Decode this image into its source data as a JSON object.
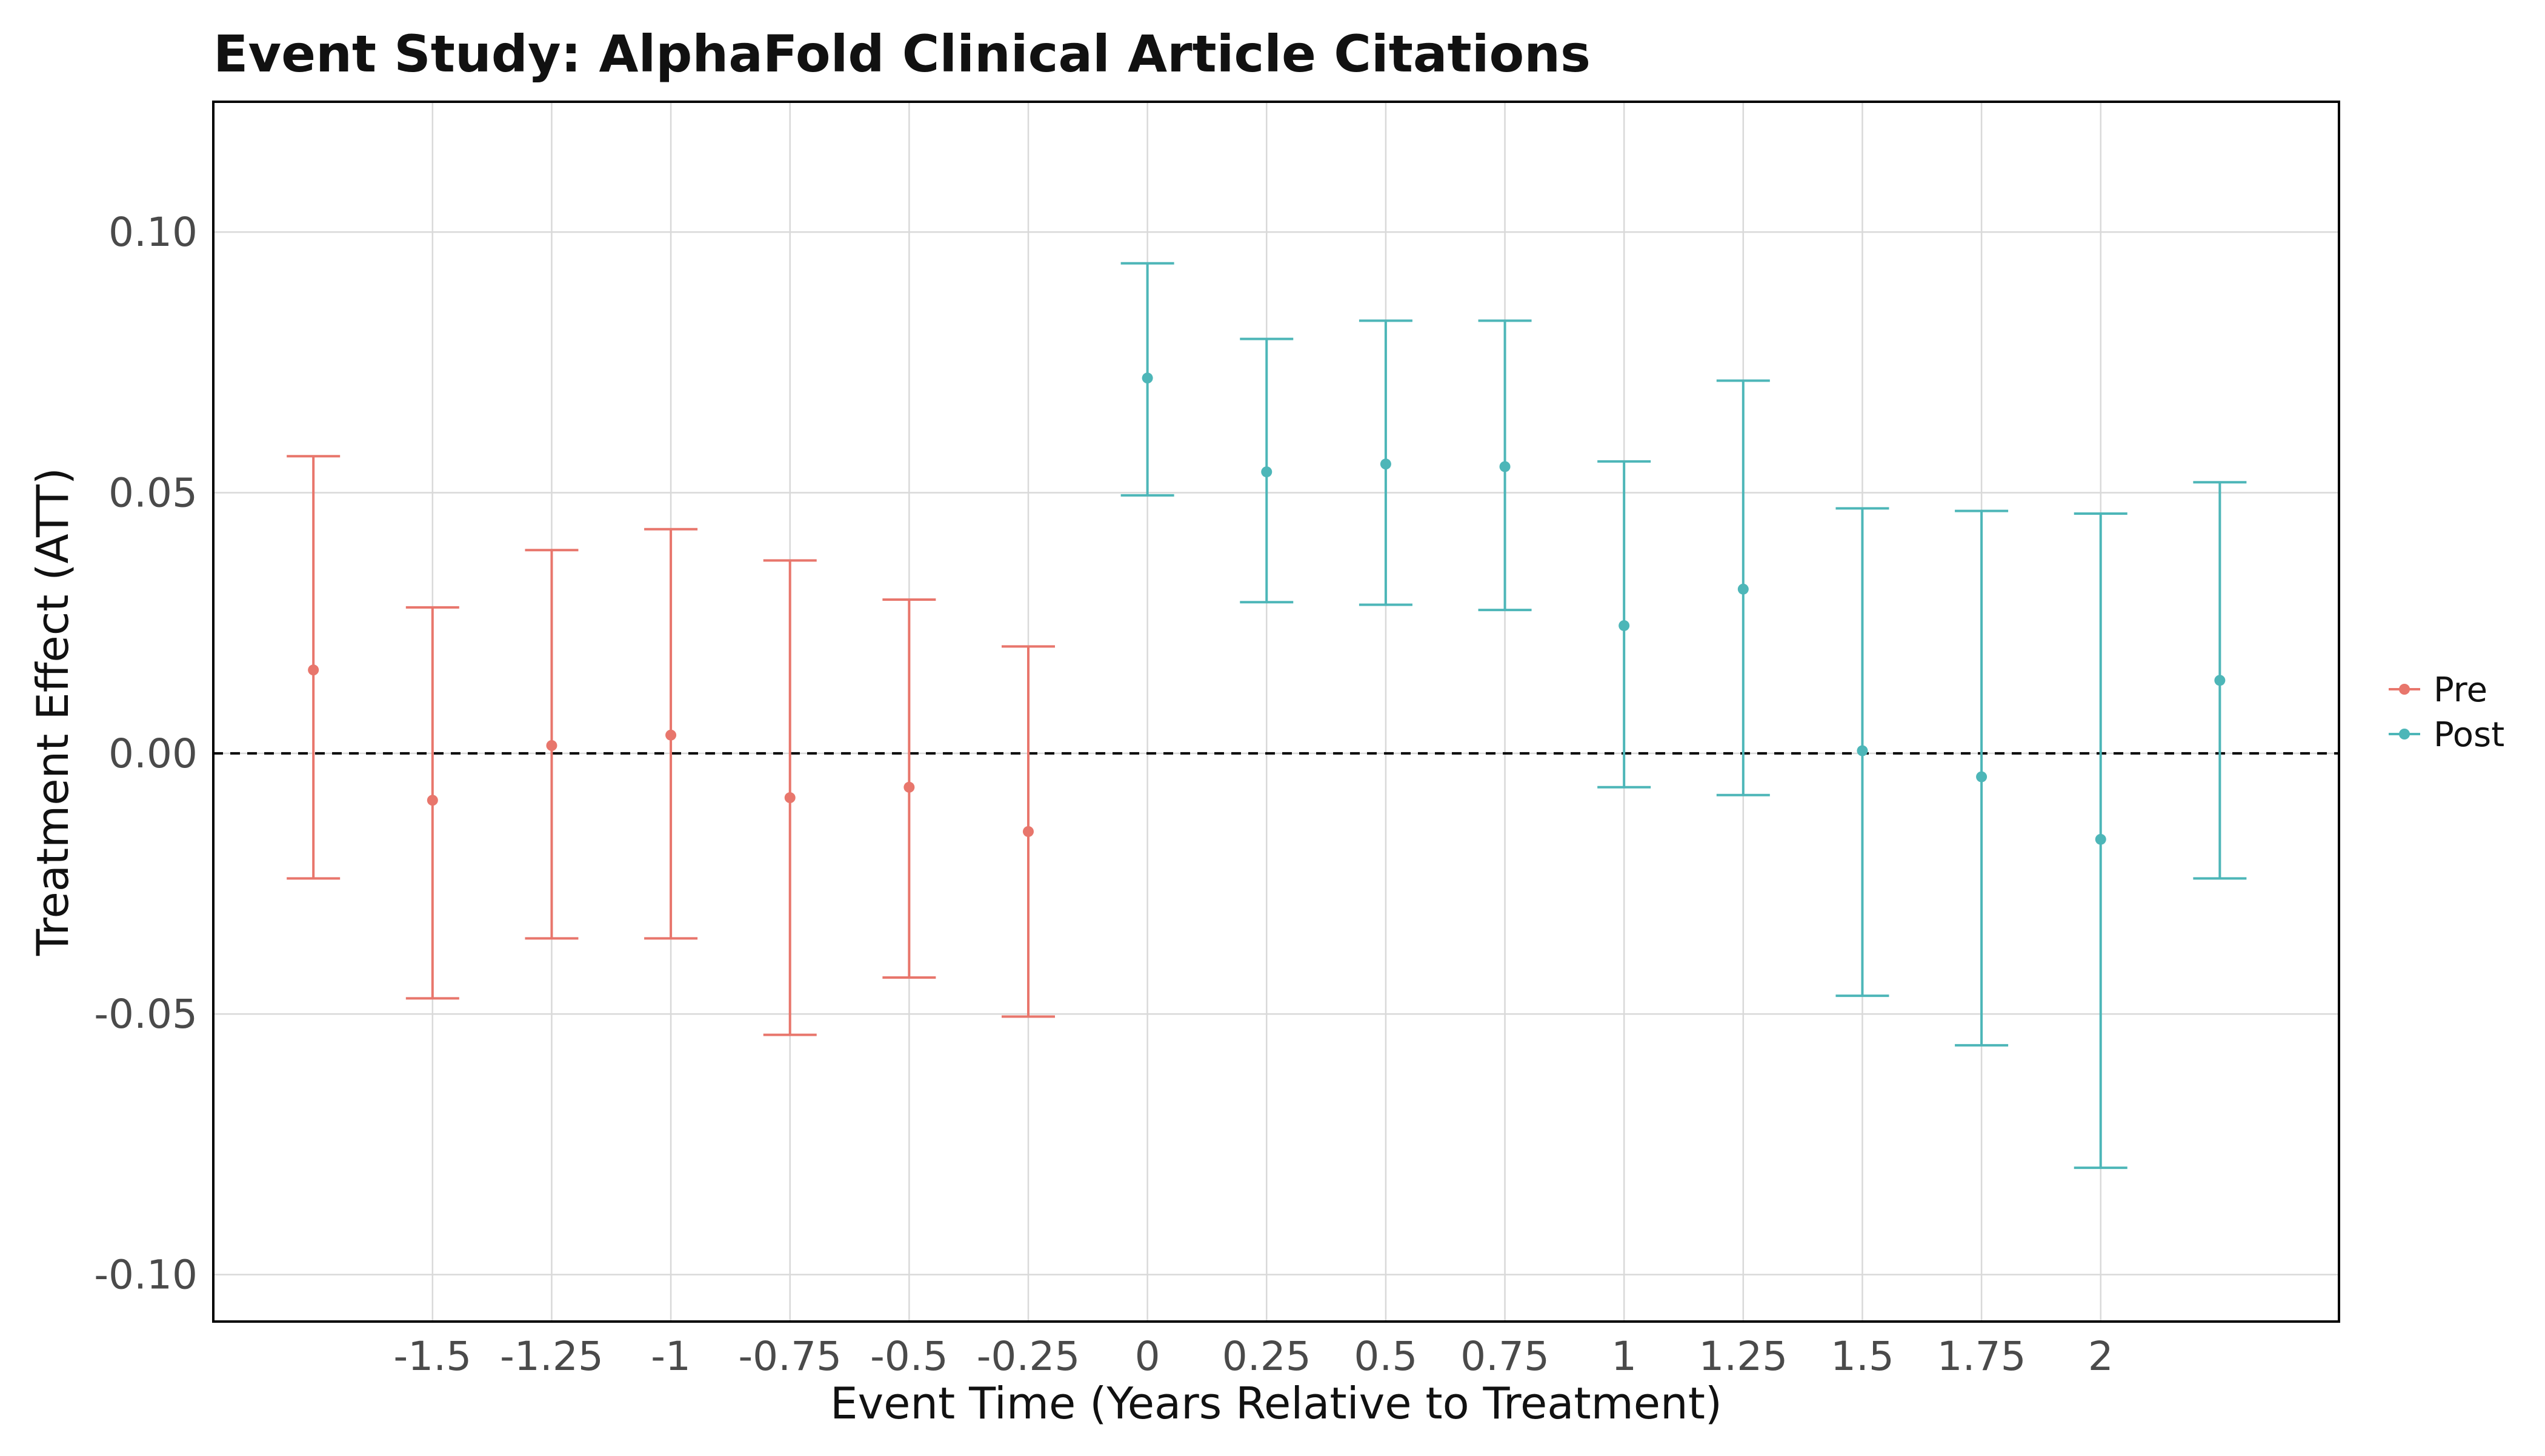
{
  "chart_data": {
    "type": "scatter",
    "title": "Event Study: AlphaFold    Clinical Article Citations",
    "xlabel": "Event Time (Years Relative to Treatment)",
    "ylabel": "Treatment Effect (ATT)",
    "xlim": [
      -1.96,
      2.5
    ],
    "ylim": [
      -0.109,
      0.125
    ],
    "x_ticks": [
      -1.5,
      -1.25,
      -1,
      -0.75,
      -0.5,
      -0.25,
      0,
      0.25,
      0.5,
      0.75,
      1,
      1.25,
      1.5,
      1.75,
      2
    ],
    "x_tick_labels": [
      "-1.5",
      "-1.25",
      "-1",
      "-0.75",
      "-0.5",
      "-0.25",
      "0",
      "0.25",
      "0.5",
      "0.75",
      "1",
      "1.25",
      "1.5",
      "1.75",
      "2"
    ],
    "y_ticks": [
      -0.1,
      -0.05,
      0,
      0.05,
      0.1
    ],
    "y_tick_labels": [
      "-0.10",
      "-0.05",
      "0.00",
      "0.05",
      "0.10"
    ],
    "grid": true,
    "reference_line_y": 0,
    "legend_position": "right",
    "series": [
      {
        "name": "Pre",
        "color": "#E8766C",
        "points": [
          {
            "x": -1.75,
            "y": 0.016,
            "lower": -0.024,
            "upper": 0.057
          },
          {
            "x": -1.5,
            "y": -0.009,
            "lower": -0.047,
            "upper": 0.028
          },
          {
            "x": -1.25,
            "y": 0.0015,
            "lower": -0.0355,
            "upper": 0.039
          },
          {
            "x": -1,
            "y": 0.0035,
            "lower": -0.0355,
            "upper": 0.043
          },
          {
            "x": -0.75,
            "y": -0.0085,
            "lower": -0.054,
            "upper": 0.037
          },
          {
            "x": -0.5,
            "y": -0.0065,
            "lower": -0.043,
            "upper": 0.0295
          },
          {
            "x": -0.25,
            "y": -0.015,
            "lower": -0.0505,
            "upper": 0.0205
          }
        ]
      },
      {
        "name": "Post",
        "color": "#4DB6B8",
        "points": [
          {
            "x": 0,
            "y": 0.072,
            "lower": 0.0495,
            "upper": 0.094
          },
          {
            "x": 0.25,
            "y": 0.054,
            "lower": 0.029,
            "upper": 0.0795
          },
          {
            "x": 0.5,
            "y": 0.0555,
            "lower": 0.0285,
            "upper": 0.083
          },
          {
            "x": 0.75,
            "y": 0.055,
            "lower": 0.0275,
            "upper": 0.083
          },
          {
            "x": 1,
            "y": 0.0245,
            "lower": -0.0065,
            "upper": 0.056
          },
          {
            "x": 1.25,
            "y": 0.0315,
            "lower": -0.008,
            "upper": 0.0715
          },
          {
            "x": 1.5,
            "y": 0.0005,
            "lower": -0.0465,
            "upper": 0.047
          },
          {
            "x": 1.75,
            "y": -0.0045,
            "lower": -0.056,
            "upper": 0.0465
          },
          {
            "x": 2,
            "y": -0.0165,
            "lower": -0.0795,
            "upper": 0.046
          },
          {
            "x": 2.25,
            "y": 0.014,
            "lower": -0.024,
            "upper": 0.052
          }
        ]
      }
    ]
  },
  "colors": {
    "grid": "#D9D9D9",
    "axis": "#000000",
    "reference_line": "#000000",
    "background": "#FFFFFF"
  }
}
